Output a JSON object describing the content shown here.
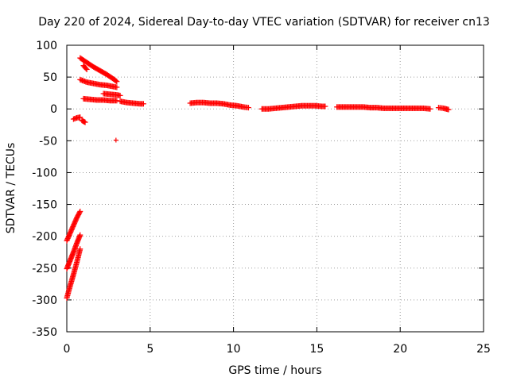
{
  "chart_data": {
    "type": "scatter",
    "title": "Day 220 of 2024, Sidereal Day-to-day VTEC variation (SDTVAR) for receiver cn13",
    "xlabel": "GPS time / hours",
    "ylabel": "SDTVAR / TECUs",
    "xlim": [
      0,
      25
    ],
    "ylim": [
      -350,
      100
    ],
    "xticks": [
      0,
      5,
      10,
      15,
      20,
      25
    ],
    "yticks": [
      100,
      50,
      0,
      -50,
      -100,
      -150,
      -200,
      -250,
      -300,
      -350
    ],
    "xtick_labels": [
      "0",
      "5",
      "10",
      "15",
      "20",
      "25"
    ],
    "ytick_labels": [
      "100",
      "50",
      "0",
      "-50",
      "-100",
      "-150",
      "-200",
      "-250",
      "-300",
      "-350"
    ],
    "grid": true,
    "marker": "plus",
    "color": "#ff0000",
    "series": [
      {
        "segments": [
          {
            "x": [
              0.8,
              1.2,
              1.6,
              2.0,
              2.4,
              2.8,
              3.0
            ],
            "y": [
              80,
              73,
              66,
              60,
              54,
              47,
              43
            ]
          },
          {
            "x": [
              0.8,
              1.2,
              1.6,
              2.0,
              2.4,
              2.8,
              3.0
            ],
            "y": [
              46,
              42,
              40,
              38,
              37,
              35,
              34
            ]
          },
          {
            "x": [
              1.0,
              1.4,
              1.8,
              2.2,
              2.6,
              3.0
            ],
            "y": [
              16,
              15,
              14,
              14,
              13,
              13
            ]
          },
          {
            "x": [
              1.0,
              1.2
            ],
            "y": [
              68,
              62
            ]
          },
          {
            "x": [
              2.2,
              2.6,
              3.0,
              3.2
            ],
            "y": [
              24,
              23,
              22,
              21
            ]
          },
          {
            "x": [
              3.2,
              3.6,
              4.0,
              4.4,
              4.6
            ],
            "y": [
              12,
              10,
              9,
              8,
              8
            ]
          },
          {
            "x": [
              0.4,
              0.6,
              0.8
            ],
            "y": [
              -16,
              -14,
              -13
            ]
          },
          {
            "x": [
              0.9,
              1.1
            ],
            "y": [
              -18,
              -21
            ]
          },
          {
            "x": [
              0.0,
              0.2,
              0.4,
              0.6,
              0.8
            ],
            "y": [
              -207,
              -195,
              -183,
              -171,
              -161
            ]
          },
          {
            "x": [
              0.0,
              0.2,
              0.4,
              0.6,
              0.8
            ],
            "y": [
              -251,
              -238,
              -225,
              -211,
              -198
            ]
          },
          {
            "x": [
              0.0,
              0.2,
              0.4,
              0.6,
              0.8
            ],
            "y": [
              -297,
              -278,
              -260,
              -241,
              -220
            ]
          },
          {
            "x": [
              7.4,
              7.8,
              8.2,
              8.6,
              9.0,
              9.4,
              9.8,
              10.2,
              10.6,
              10.9
            ],
            "y": [
              9,
              10,
              10,
              9,
              9,
              8,
              6,
              5,
              3,
              2
            ]
          },
          {
            "x": [
              11.7,
              12.1,
              12.5,
              12.9,
              13.3,
              13.7,
              14.1,
              14.5,
              14.9,
              15.3,
              15.5
            ],
            "y": [
              0,
              0,
              1,
              2,
              3,
              4,
              5,
              5,
              5,
              4,
              4
            ]
          },
          {
            "x": [
              16.2,
              16.6,
              17.0,
              17.4,
              17.8,
              18.2,
              18.6,
              19.0,
              19.4,
              19.8,
              20.2,
              20.6,
              21.0,
              21.4,
              21.8
            ],
            "y": [
              3,
              3,
              3,
              3,
              3,
              2,
              2,
              1,
              1,
              1,
              1,
              1,
              1,
              1,
              0
            ]
          },
          {
            "x": [
              22.3,
              22.6,
              22.9
            ],
            "y": [
              2,
              1,
              -1
            ]
          },
          {
            "x": [
              2.95
            ],
            "y": [
              -49
            ]
          }
        ]
      }
    ]
  }
}
